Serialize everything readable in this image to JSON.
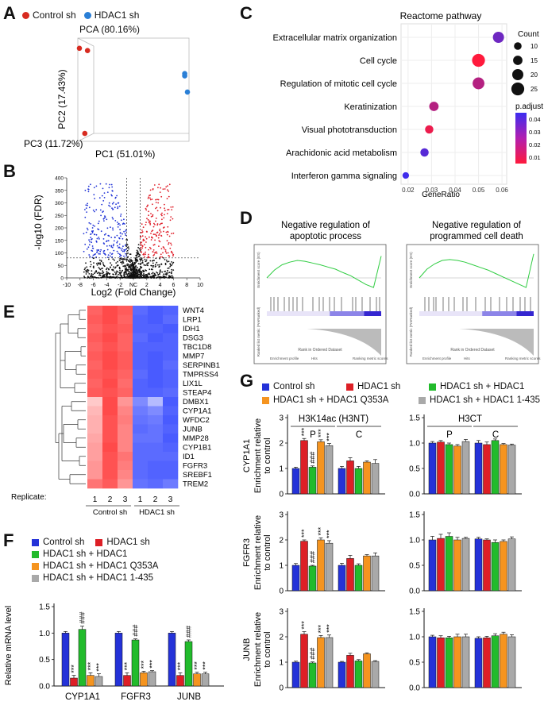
{
  "panel_labels": {
    "A": "A",
    "B": "B",
    "C": "C",
    "D": "D",
    "E": "E",
    "F": "F",
    "G": "G"
  },
  "colors": {
    "control": "#2432d8",
    "hdac1": "#dd1f26",
    "rescue": "#22bb2c",
    "q353a": "#f5941f",
    "d435": "#a9a9a9",
    "pca_control": "#d72b20",
    "pca_hdac1": "#2a7fd6"
  },
  "group_names": {
    "control": "Control sh",
    "hdac1": "HDAC1 sh",
    "rescue": "HDAC1 sh + HDAC1",
    "q353a": "HDAC1 sh + HDAC1 Q353A",
    "d435": "HDAC1 sh + HDAC1 1-435"
  },
  "chart_data": [
    {
      "id": "A",
      "type": "scatter",
      "title": "PCA (80.16%)",
      "xlabel": "PC1 (51.01%)",
      "ylabel": "PC2 (17.43%)",
      "zlabel": "PC3 (11.72%)",
      "legend": [
        "Control sh",
        "HDAC1 sh"
      ],
      "series": [
        {
          "name": "Control sh",
          "points": [
            [
              -1.0,
              0.9
            ],
            [
              -0.85,
              0.85
            ],
            [
              -0.9,
              -0.95
            ]
          ]
        },
        {
          "name": "HDAC1 sh",
          "points": [
            [
              0.95,
              0.35
            ],
            [
              0.95,
              0.3
            ],
            [
              1.0,
              -0.05
            ]
          ]
        }
      ]
    },
    {
      "id": "B",
      "type": "scatter",
      "xlabel": "Log2 (Fold Change)",
      "ylabel": "-log10 (FDR)",
      "xticks": [
        "-10",
        "-8",
        "-6",
        "-4",
        "-2",
        "NC",
        "2",
        "4",
        "6",
        "8",
        "10"
      ],
      "yticks": [
        "0",
        "50",
        "100",
        "150",
        "200",
        "250",
        "300",
        "350",
        "400"
      ],
      "xlim": [
        -10,
        10
      ],
      "ylim": [
        0,
        400
      ],
      "fc_threshold": [
        -1,
        1
      ],
      "fdr_line": 80
    },
    {
      "id": "C",
      "type": "scatter",
      "title": "Reactome pathway",
      "xlabel": "GeneRatio",
      "xticks": [
        "0.02",
        "0.03",
        "0.04",
        "0.05",
        "0.06"
      ],
      "xlim": [
        0.017,
        0.062
      ],
      "size_legend_title": "Count",
      "size_legend": [
        "10",
        "15",
        "20",
        "25"
      ],
      "color_legend_title": "p.adjust",
      "color_legend": [
        "0.04",
        "0.03",
        "0.02",
        "0.01"
      ],
      "terms": [
        {
          "name": "Extracellular matrix organization",
          "x": 0.0585,
          "count": 20,
          "p": 0.035
        },
        {
          "name": "Cell cycle",
          "x": 0.05,
          "count": 25,
          "p": 0.004
        },
        {
          "name": "Regulation of mitotic cell cycle",
          "x": 0.05,
          "count": 22,
          "p": 0.02
        },
        {
          "name": "Keratinization",
          "x": 0.031,
          "count": 15,
          "p": 0.02
        },
        {
          "name": "Visual phototransduction",
          "x": 0.029,
          "count": 12,
          "p": 0.008
        },
        {
          "name": "Arachidonic acid metabolism",
          "x": 0.027,
          "count": 12,
          "p": 0.04
        },
        {
          "name": "Interferon gamma signaling",
          "x": 0.019,
          "count": 7,
          "p": 0.045
        }
      ]
    },
    {
      "id": "D",
      "type": "line",
      "plots": [
        {
          "title": "Negative regulation of apoptotic process",
          "es": [
            0,
            0.18,
            0.3,
            0.36,
            0.4,
            0.38,
            0.34,
            0.3,
            0.25,
            0.2,
            0.12,
            0.05,
            -0.05,
            -0.15,
            -0.22,
            0.5
          ]
        },
        {
          "title": "Negative regulation of programmed cell death",
          "es": [
            0,
            0.2,
            0.32,
            0.4,
            0.42,
            0.4,
            0.36,
            0.3,
            0.24,
            0.18,
            0.1,
            0.02,
            -0.06,
            -0.14,
            -0.22,
            0.55
          ]
        }
      ],
      "ylabel1": "Enrichment score (ES)",
      "ylabel2": "Ranked list metric (PreRanked)",
      "xlabel": "Rank in Ordered Dataset",
      "legend_items": [
        "Enrichment profile",
        "Hits",
        "Ranking metric scores"
      ]
    },
    {
      "id": "E",
      "type": "heatmap",
      "genes": [
        "WNT4",
        "LRP1",
        "IDH1",
        "DSG3",
        "TBC1D8",
        "MMP7",
        "SERPINB1",
        "TMPRSS4",
        "LIX1L",
        "STEAP4",
        "DMBX1",
        "CYP1A1",
        "WFDC2",
        "JUNB",
        "MMP28",
        "CYP1B1",
        "ID1",
        "FGFR3",
        "SREBF1",
        "TREM2"
      ],
      "replicate_label": "Replicate:",
      "replicates": [
        "1",
        "2",
        "3",
        "1",
        "2",
        "3"
      ],
      "groups": [
        "Control sh",
        "HDAC1 sh"
      ],
      "values": [
        [
          0.8,
          0.95,
          0.85,
          -0.8,
          -0.9,
          -0.85
        ],
        [
          0.85,
          0.95,
          0.8,
          -0.85,
          -0.9,
          -0.8
        ],
        [
          0.8,
          0.9,
          0.85,
          -0.85,
          -0.85,
          -0.9
        ],
        [
          0.85,
          0.95,
          0.8,
          -0.8,
          -0.9,
          -0.85
        ],
        [
          0.8,
          0.9,
          0.8,
          -0.85,
          -0.85,
          -0.85
        ],
        [
          0.85,
          0.95,
          0.85,
          -0.85,
          -0.9,
          -0.85
        ],
        [
          0.8,
          0.95,
          0.85,
          -0.85,
          -0.9,
          -0.8
        ],
        [
          0.85,
          0.9,
          0.8,
          -0.8,
          -0.9,
          -0.85
        ],
        [
          0.8,
          0.95,
          0.75,
          -0.85,
          -0.9,
          -0.85
        ],
        [
          0.85,
          0.9,
          0.8,
          -0.85,
          -0.85,
          -0.8
        ],
        [
          0.2,
          0.95,
          0.5,
          -0.6,
          -0.3,
          -0.9
        ],
        [
          0.3,
          0.95,
          0.6,
          -0.7,
          -0.6,
          -0.85
        ],
        [
          0.35,
          0.9,
          0.65,
          -0.75,
          -0.7,
          -0.9
        ],
        [
          0.35,
          0.9,
          0.6,
          -0.8,
          -0.75,
          -0.85
        ],
        [
          0.4,
          0.9,
          0.6,
          -0.75,
          -0.75,
          -0.9
        ],
        [
          0.45,
          0.95,
          0.6,
          -0.8,
          -0.8,
          -0.85
        ],
        [
          0.45,
          0.9,
          0.7,
          -0.8,
          -0.8,
          -0.8
        ],
        [
          0.5,
          0.9,
          0.65,
          -0.8,
          -0.85,
          -0.85
        ],
        [
          0.5,
          0.9,
          0.6,
          -0.8,
          -0.85,
          -0.85
        ],
        [
          0.7,
          0.85,
          0.5,
          -0.75,
          -0.8,
          -0.7
        ]
      ]
    },
    {
      "id": "F",
      "type": "bar",
      "ylabel": "Relative mRNA level",
      "ylim": [
        0,
        1.5
      ],
      "yticks": [
        "0.0",
        "0.5",
        "1.0",
        "1.5"
      ],
      "categories": [
        "CYP1A1",
        "FGFR3",
        "JUNB"
      ],
      "legend": [
        "Control sh",
        "HDAC1 sh",
        "HDAC1 sh + HDAC1",
        "HDAC1 sh + HDAC1 Q353A",
        "HDAC1 sh + HDAC1 1-435"
      ],
      "series": [
        {
          "name": "Control sh",
          "values": [
            1.0,
            1.0,
            1.0
          ],
          "err": [
            0.03,
            0.03,
            0.03
          ]
        },
        {
          "name": "HDAC1 sh",
          "values": [
            0.15,
            0.2,
            0.2
          ],
          "err": [
            0.05,
            0.05,
            0.05
          ],
          "marks": [
            "***",
            "***",
            "***"
          ]
        },
        {
          "name": "HDAC1 sh + HDAC1",
          "values": [
            1.07,
            0.87,
            0.84
          ],
          "err": [
            0.06,
            0.02,
            0.03
          ],
          "marks": [
            "###",
            "###",
            "###"
          ]
        },
        {
          "name": "HDAC1 sh + HDAC1 Q353A",
          "values": [
            0.2,
            0.25,
            0.23
          ],
          "err": [
            0.05,
            0.03,
            0.03
          ],
          "marks": [
            "***",
            "***",
            "***"
          ]
        },
        {
          "name": "HDAC1 sh + HDAC1 1-435",
          "values": [
            0.18,
            0.27,
            0.23
          ],
          "err": [
            0.05,
            0.02,
            0.03
          ],
          "marks": [
            "***",
            "***",
            "***"
          ]
        }
      ]
    },
    {
      "id": "G",
      "type": "bar",
      "columns": [
        "H3K14ac (H3NT)",
        "H3CT"
      ],
      "regions": [
        "P",
        "C"
      ],
      "ylabel_suffix": "Enrichment relative to control",
      "legend": [
        "Control sh",
        "HDAC1 sh",
        "HDAC1 sh + HDAC1",
        "HDAC1 sh + HDAC1 Q353A",
        "HDAC1 sh + HDAC1 1-435"
      ],
      "genes": [
        "CYP1A1",
        "FGFR3",
        "JUNB"
      ],
      "h3nt_ylim": [
        0,
        3
      ],
      "h3nt_yticks": [
        "0",
        "1",
        "2",
        "3"
      ],
      "h3ct_ylim": [
        0,
        1.5
      ],
      "h3ct_yticks": [
        "0.0",
        "0.5",
        "1.0",
        "1.5"
      ],
      "data": {
        "CYP1A1": {
          "h3nt_P": [
            1.0,
            2.1,
            1.05,
            2.05,
            1.9
          ],
          "h3nt_P_err": [
            0.05,
            0.08,
            0.05,
            0.08,
            0.08
          ],
          "h3nt_C": [
            1.0,
            1.3,
            1.0,
            1.25,
            1.2
          ],
          "h3nt_C_err": [
            0.08,
            0.12,
            0.08,
            0.05,
            0.15
          ],
          "h3ct_P": [
            1.0,
            1.02,
            0.97,
            0.94,
            1.03
          ],
          "h3ct_P_err": [
            0.03,
            0.03,
            0.03,
            0.03,
            0.04
          ],
          "h3ct_C": [
            1.0,
            0.97,
            1.05,
            0.97,
            0.96
          ],
          "h3ct_C_err": [
            0.05,
            0.05,
            0.03,
            0.02,
            0.02
          ],
          "marks_P": [
            "",
            "***",
            "###",
            "***",
            "***"
          ]
        },
        "FGFR3": {
          "h3nt_P": [
            1.0,
            1.95,
            0.97,
            2.0,
            1.87
          ],
          "h3nt_P_err": [
            0.07,
            0.05,
            0.03,
            0.08,
            0.1
          ],
          "h3nt_C": [
            1.0,
            1.27,
            1.0,
            1.37,
            1.37
          ],
          "h3nt_C_err": [
            0.08,
            0.12,
            0.06,
            0.05,
            0.12
          ],
          "h3ct_P": [
            1.0,
            1.03,
            1.07,
            1.0,
            1.03
          ],
          "h3ct_P_err": [
            0.07,
            0.08,
            0.07,
            0.05,
            0.02
          ],
          "h3ct_C": [
            1.02,
            1.0,
            0.95,
            0.97,
            1.02
          ],
          "h3ct_C_err": [
            0.03,
            0.02,
            0.05,
            0.03,
            0.04
          ],
          "marks_P": [
            "",
            "***",
            "###",
            "***",
            "***"
          ]
        },
        "JUNB": {
          "h3nt_P": [
            1.0,
            2.1,
            0.97,
            1.97,
            1.97
          ],
          "h3nt_P_err": [
            0.04,
            0.1,
            0.04,
            0.08,
            0.1
          ],
          "h3nt_C": [
            1.0,
            1.27,
            1.05,
            1.33,
            1.03
          ],
          "h3nt_C_err": [
            0.03,
            0.08,
            0.05,
            0.04,
            0.03
          ],
          "h3ct_P": [
            1.0,
            0.98,
            0.98,
            1.0,
            1.0
          ],
          "h3ct_P_err": [
            0.03,
            0.04,
            0.03,
            0.05,
            0.05
          ],
          "h3ct_C": [
            0.97,
            0.98,
            1.02,
            1.05,
            1.0
          ],
          "h3ct_C_err": [
            0.03,
            0.03,
            0.04,
            0.04,
            0.04
          ],
          "marks_P": [
            "",
            "***",
            "###",
            "***",
            "***"
          ]
        }
      }
    }
  ]
}
